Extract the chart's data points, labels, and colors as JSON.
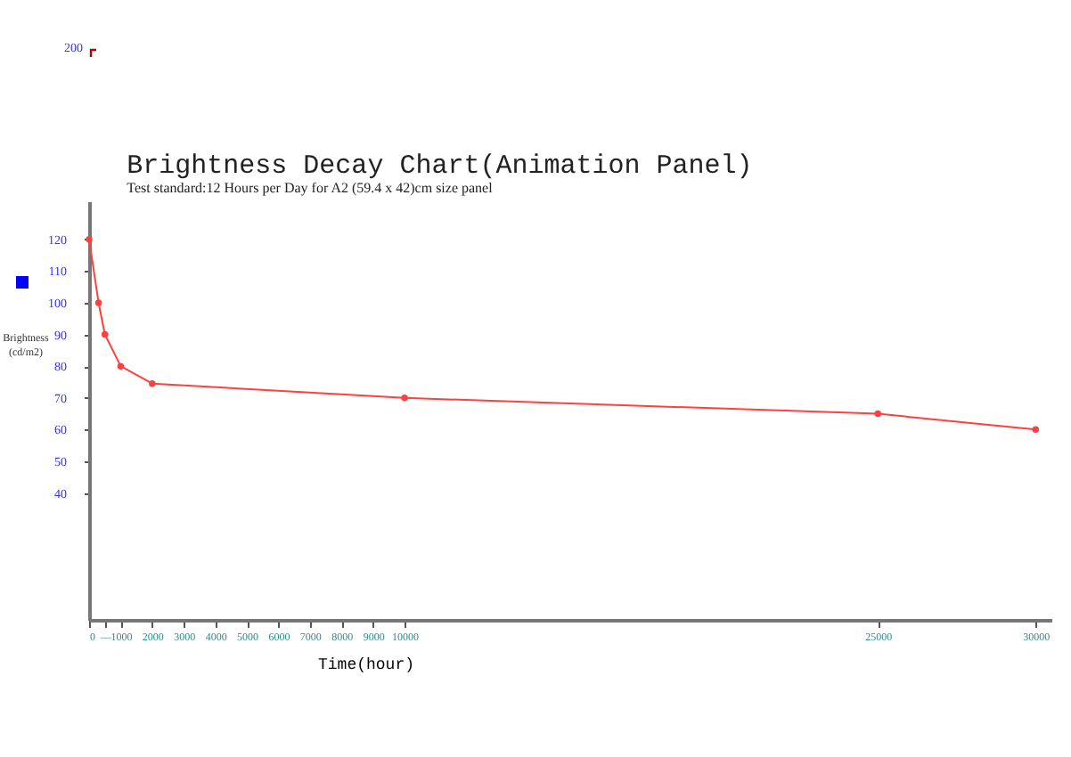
{
  "chart_data": {
    "type": "line",
    "title": "Brightness Decay Chart(Animation Panel)",
    "subtitle": "Test standard:12 Hours per Day for A2 (59.4 x 42)cm size panel",
    "xlabel": "Time(hour)",
    "ylabel": "Brightness\n(cd/m2)",
    "annotations": [
      "200"
    ],
    "x": [
      0,
      300,
      500,
      1000,
      2000,
      10000,
      25000,
      30000
    ],
    "series": [
      {
        "color": "#ff4040",
        "values": [
          120,
          100,
          90,
          80,
          74.5,
          70,
          65,
          60
        ]
      }
    ],
    "xlim": [
      0,
      30500
    ],
    "ylim": [
      0,
      132
    ],
    "xticks": [
      0,
      {
        "value": 500,
        "label": "—"
      },
      1000,
      2000,
      3000,
      4000,
      5000,
      6000,
      7000,
      8000,
      9000,
      10000,
      25000,
      30000
    ],
    "yticks": [
      40,
      50,
      60,
      70,
      80,
      90,
      100,
      110,
      120
    ],
    "grid": false,
    "legend": false,
    "marker": "circle",
    "line_style": "solid"
  }
}
